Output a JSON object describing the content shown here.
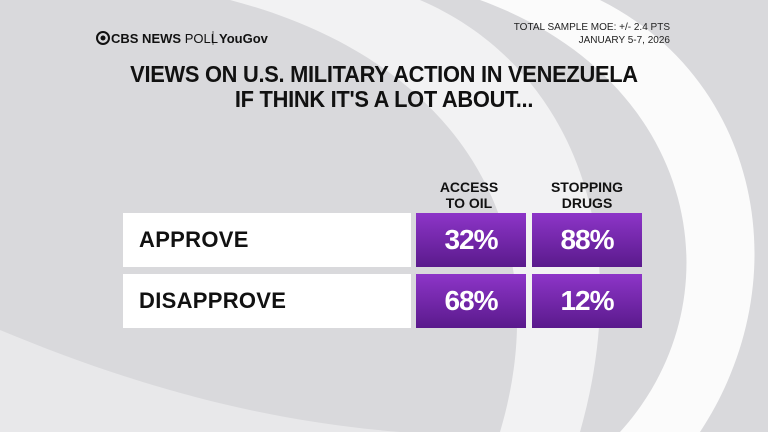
{
  "header": {
    "brand": "CBS NEWS",
    "product": "POLL",
    "partner": "YouGov",
    "moe": "TOTAL SAMPLE MOE: +/- 2.4 PTS",
    "dates": "JANUARY 5-7, 2026"
  },
  "title": [
    "VIEWS ON U.S. MILITARY ACTION IN VENEZUELA",
    "IF THINK IT'S A LOT ABOUT..."
  ],
  "table": {
    "columns": [
      [
        "ACCESS",
        "TO OIL"
      ],
      [
        "STOPPING",
        "DRUGS"
      ]
    ],
    "rows": [
      {
        "label": "APPROVE",
        "cells": [
          "32%",
          "88%"
        ]
      },
      {
        "label": "DISAPPROVE",
        "cells": [
          "68%",
          "12%"
        ]
      }
    ]
  }
}
